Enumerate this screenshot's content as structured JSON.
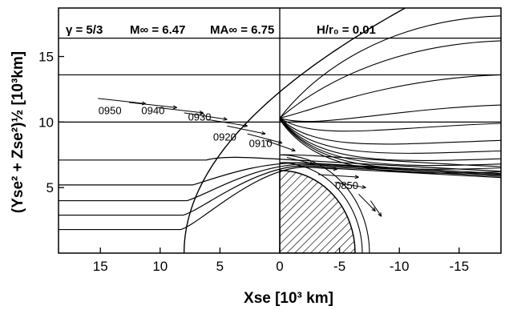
{
  "chart_data": {
    "type": "line",
    "title": "",
    "parameters": [
      {
        "text": "γ = 5/3"
      },
      {
        "text": "M∞ = 6.47"
      },
      {
        "text": "MA∞ = 6.75"
      },
      {
        "text": "H/r₀ = 0.01"
      }
    ],
    "xlabel": "Xse [10³ km]",
    "ylabel": "(Yse² + Zse²)½ [10³km]",
    "xlim": [
      18.5,
      -18.5
    ],
    "ylim": [
      0,
      18.7
    ],
    "x_ticks": [
      15,
      10,
      5,
      0,
      -5,
      -10,
      -15
    ],
    "x_tick_labels": [
      "15",
      "10",
      "5",
      "0",
      "-5",
      "-10",
      "-15"
    ],
    "y_ticks": [
      5,
      10,
      15
    ],
    "y_tick_labels": [
      "5",
      "10",
      "15"
    ],
    "obstacle": {
      "center_x": 0,
      "radius": 6.3,
      "fill": "hatched"
    },
    "streamlines_far_y": [
      16.4,
      13.6,
      10.0,
      7.1,
      5.2,
      4.0,
      2.9,
      1.8
    ],
    "bow_shock": {
      "nose_x": 8.0
    },
    "flow_lines_behind_y": [
      18.1,
      16.2,
      13.6,
      11.3,
      9.9,
      8.6,
      7.8,
      7.2,
      6.8,
      6.5,
      6.2
    ],
    "trajectory_labels": [
      {
        "text": "0950",
        "x": 14.2,
        "y": 10.6
      },
      {
        "text": "0940",
        "x": 10.6,
        "y": 10.6
      },
      {
        "text": "0930",
        "x": 6.7,
        "y": 10.1
      },
      {
        "text": "0920",
        "x": 4.6,
        "y": 8.6
      },
      {
        "text": "0910",
        "x": 1.6,
        "y": 8.1
      },
      {
        "text": "0850",
        "x": -5.6,
        "y": 4.9
      }
    ],
    "vectors": [
      {
        "x": 15.2,
        "y": 11.8,
        "dx": -4.0,
        "dy": -0.4
      },
      {
        "x": 12.6,
        "y": 11.5,
        "dx": -4.0,
        "dy": -0.4
      },
      {
        "x": 10.2,
        "y": 11.1,
        "dx": -3.8,
        "dy": -0.4
      },
      {
        "x": 8.0,
        "y": 10.7,
        "dx": -3.6,
        "dy": -0.5
      },
      {
        "x": 6.1,
        "y": 10.2,
        "dx": -3.4,
        "dy": -0.5
      },
      {
        "x": 4.4,
        "y": 9.7,
        "dx": -3.2,
        "dy": -0.6
      },
      {
        "x": 2.7,
        "y": 9.1,
        "dx": -2.9,
        "dy": -0.7
      },
      {
        "x": 1.2,
        "y": 8.6,
        "dx": -2.5,
        "dy": -0.8
      },
      {
        "x": -0.6,
        "y": 7.3,
        "dx": -2.2,
        "dy": -0.5
      },
      {
        "x": -1.6,
        "y": 6.6,
        "dx": -3.2,
        "dy": -0.2
      },
      {
        "x": -3.2,
        "y": 6.0,
        "dx": -3.4,
        "dy": -0.2
      },
      {
        "x": -4.6,
        "y": 5.4,
        "dx": -2.6,
        "dy": -0.4
      },
      {
        "x": -6.6,
        "y": 4.5,
        "dx": -1.4,
        "dy": -1.3
      },
      {
        "x": -7.6,
        "y": 4.0,
        "dx": -0.9,
        "dy": -1.2
      }
    ]
  }
}
